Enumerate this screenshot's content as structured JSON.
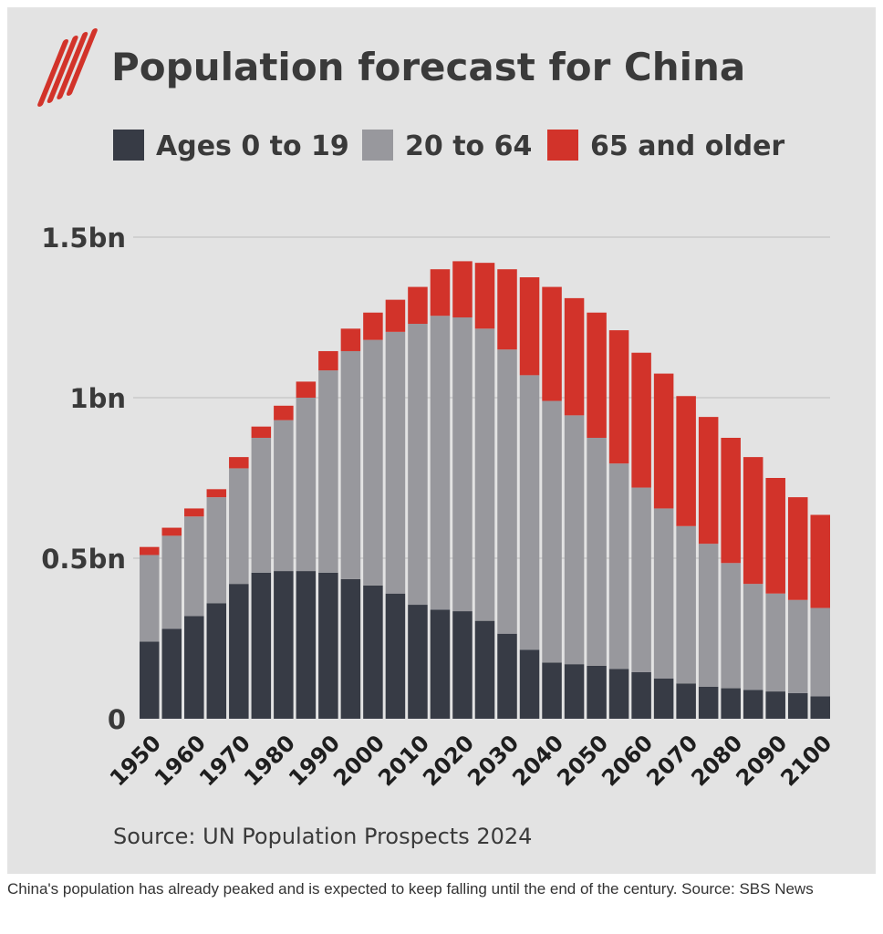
{
  "figure": {
    "title": "Population forecast for China",
    "source": "Source: UN Population Prospects 2024"
  },
  "caption": "China's population has already peaked and is expected to keep falling until the end of the century. Source: SBS News",
  "logo": {
    "icon": "sbs-logo-icon",
    "color": "#d2332a"
  },
  "colors": {
    "background": "#e3e3e3",
    "text": "#3a3a3a",
    "grid": "#bcbcbc"
  },
  "chart_data": {
    "type": "bar",
    "stacked": true,
    "title": "Population forecast for China",
    "xlabel": "",
    "ylabel": "",
    "ylim": [
      0,
      1.5
    ],
    "yticks": [
      {
        "value": 0,
        "label": "0"
      },
      {
        "value": 0.5,
        "label": "0.5bn"
      },
      {
        "value": 1.0,
        "label": "1bn"
      },
      {
        "value": 1.5,
        "label": "1.5bn"
      }
    ],
    "grid": true,
    "legend_position": "top",
    "x": [
      1950,
      1955,
      1960,
      1965,
      1970,
      1975,
      1980,
      1985,
      1990,
      1995,
      2000,
      2005,
      2010,
      2015,
      2020,
      2025,
      2030,
      2035,
      2040,
      2045,
      2050,
      2055,
      2060,
      2065,
      2070,
      2075,
      2080,
      2085,
      2090,
      2095,
      2100
    ],
    "x_tick_labels": [
      "1950",
      "1960",
      "1970",
      "1980",
      "1990",
      "2000",
      "2010",
      "2020",
      "2030",
      "2040",
      "2050",
      "2060",
      "2070",
      "2080",
      "2090",
      "2100"
    ],
    "series": [
      {
        "name": "Ages 0 to 19",
        "color": "#373b45",
        "values": [
          0.24,
          0.28,
          0.32,
          0.36,
          0.42,
          0.455,
          0.46,
          0.46,
          0.455,
          0.435,
          0.415,
          0.39,
          0.355,
          0.34,
          0.335,
          0.305,
          0.265,
          0.215,
          0.175,
          0.17,
          0.165,
          0.155,
          0.145,
          0.125,
          0.11,
          0.1,
          0.095,
          0.09,
          0.085,
          0.08,
          0.07
        ]
      },
      {
        "name": "20 to 64",
        "color": "#98989d",
        "values": [
          0.27,
          0.29,
          0.31,
          0.33,
          0.36,
          0.42,
          0.47,
          0.54,
          0.63,
          0.71,
          0.765,
          0.815,
          0.875,
          0.915,
          0.915,
          0.91,
          0.885,
          0.855,
          0.815,
          0.775,
          0.71,
          0.64,
          0.575,
          0.53,
          0.49,
          0.445,
          0.39,
          0.33,
          0.305,
          0.29,
          0.275
        ]
      },
      {
        "name": "65 and older",
        "color": "#d2332a",
        "values": [
          0.025,
          0.025,
          0.025,
          0.025,
          0.035,
          0.035,
          0.045,
          0.05,
          0.06,
          0.07,
          0.085,
          0.1,
          0.115,
          0.145,
          0.175,
          0.205,
          0.25,
          0.305,
          0.355,
          0.365,
          0.39,
          0.415,
          0.42,
          0.42,
          0.405,
          0.395,
          0.39,
          0.395,
          0.36,
          0.32,
          0.29
        ]
      }
    ]
  }
}
